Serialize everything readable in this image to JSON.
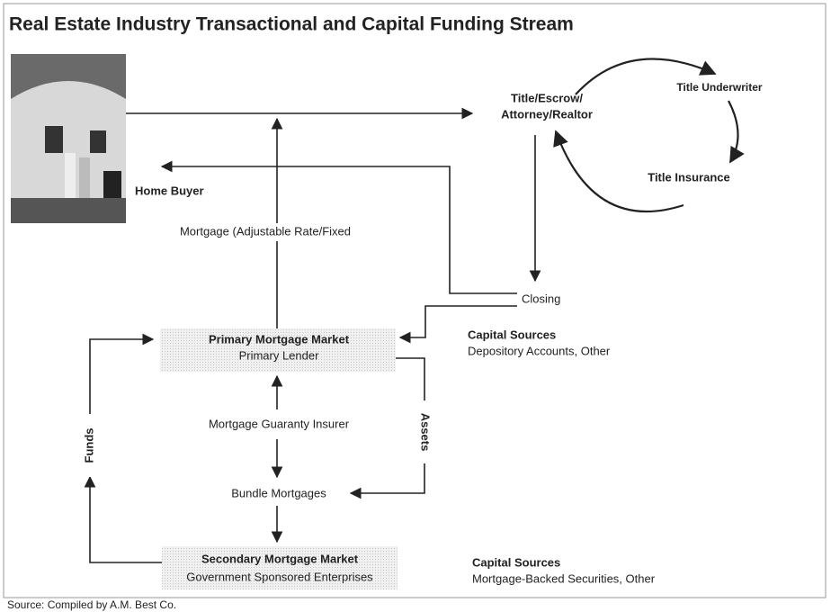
{
  "title": "Real Estate Industry Transactional and Capital Funding Stream",
  "nodes": {
    "title_escrow": [
      "Title/Escrow/",
      "Attorney/Realtor"
    ],
    "title_underwriter": "Title Underwriter",
    "title_insurance": "Title Insurance",
    "home_buyer": "Home Buyer",
    "mortgage": "Mortgage (Adjustable Rate/Fixed",
    "closing": "Closing",
    "capital_sources_1": [
      "Capital Sources",
      "Depository Accounts, Other"
    ],
    "primary": [
      "Primary Mortgage Market",
      "Primary Lender"
    ],
    "assets": "Assets",
    "funds": "Funds",
    "guaranty": "Mortgage Guaranty Insurer",
    "bundle": "Bundle Mortgages",
    "secondary": [
      "Secondary Mortgage Market",
      "Government Sponsored Enterprises"
    ],
    "capital_sources_2": [
      "Capital Sources",
      "Mortgage-Backed Securities, Other"
    ]
  },
  "source": "Source: Compiled by A.M. Best Co."
}
